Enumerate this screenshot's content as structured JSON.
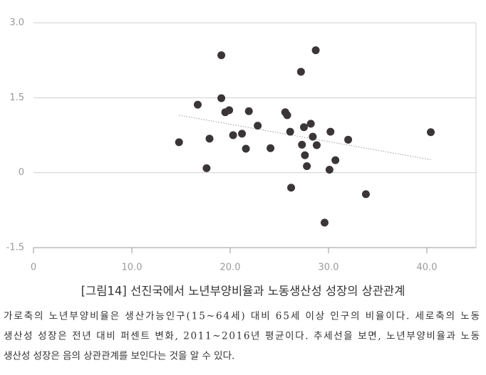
{
  "chart_data": {
    "type": "scatter",
    "title": "[그림14] 선진국에서 노년부양비율과 노동생산성 성장의 상관관계",
    "caption": [
      "가로축의 노년부양비율은 생산가능인구(15~64세) 대비 65세 이상 인구의 비율이다. 세로축의 노동",
      "생산성 성장은 전년 대비 퍼센트 변화, 2011~2016년 평균이다. 추세선을 보면, 노년부양비율과 노동",
      "생산성 성장은 음의 상관관계를 보인다는 것을 알 수 있다."
    ],
    "x": [
      14.8,
      16.7,
      17.6,
      17.9,
      19.1,
      19.1,
      19.5,
      19.9,
      20.3,
      21.2,
      21.6,
      21.9,
      22.8,
      24.1,
      25.6,
      25.8,
      26.1,
      26.2,
      27.2,
      27.3,
      27.5,
      27.6,
      27.8,
      28.2,
      28.4,
      28.7,
      28.8,
      29.6,
      30.1,
      30.2,
      30.7,
      32.0,
      33.8,
      40.4
    ],
    "values": [
      0.61,
      1.36,
      0.09,
      0.68,
      2.35,
      1.49,
      1.21,
      1.25,
      0.75,
      0.78,
      0.48,
      1.23,
      0.94,
      0.49,
      1.21,
      1.15,
      0.82,
      -0.3,
      2.02,
      0.56,
      0.91,
      0.35,
      0.13,
      0.98,
      0.72,
      2.45,
      0.55,
      -1.0,
      0.06,
      0.82,
      0.25,
      0.66,
      -0.43,
      0.81
    ],
    "color": "#3a3536",
    "trend_line": {
      "x": [
        14.8,
        40.4
      ],
      "y": [
        1.15,
        0.26
      ],
      "color": "#9a9a9a"
    },
    "xlim": [
      0,
      45
    ],
    "ylim": [
      -1.5,
      3.0
    ],
    "xticks": [
      0,
      {
        "value": 10,
        "label": "10.0"
      },
      {
        "value": 20,
        "label": "20.0"
      },
      {
        "value": 30,
        "label": "30.0"
      },
      {
        "value": 40,
        "label": "40.0"
      }
    ],
    "yticks": [
      -1.5,
      0,
      1.5,
      {
        "value": 3,
        "label": "3.0"
      }
    ],
    "grid": true
  }
}
